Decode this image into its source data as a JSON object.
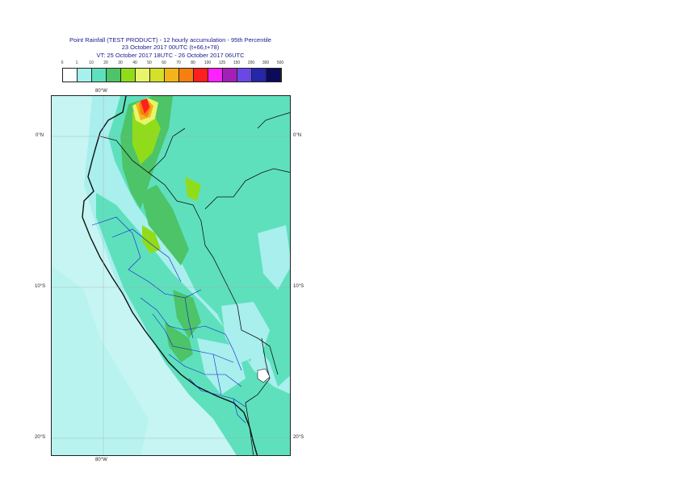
{
  "title": {
    "line1": "Point Rainfall (TEST PRODUCT) - 12 hourly accumulation - 95th Percentile",
    "line2": "23 October 2017 00UTC (t+66,t+78)",
    "line3": "VT: 25 October 2017 18UTC - 26 October 2017 06UTC"
  },
  "legend": {
    "ticks": [
      "0",
      "1",
      "10",
      "20",
      "30",
      "40",
      "50",
      "60",
      "70",
      "80",
      "100",
      "125",
      "150",
      "200",
      "300",
      "500"
    ],
    "colors": [
      "#ffffff",
      "#a6f0ee",
      "#5ee0bd",
      "#4cc467",
      "#91dc1a",
      "#e8f56a",
      "#d4e02a",
      "#f2b31b",
      "#f77f0f",
      "#ff1f1f",
      "#ff22ff",
      "#a41fb8",
      "#6a48e8",
      "#2526a8",
      "#0b0b5a"
    ]
  },
  "axes": {
    "top_lon": "80°W",
    "bottom_lon": "80°W",
    "lat_left": [
      "0°N",
      "10°S",
      "20°S"
    ],
    "lat_right": [
      "0°N",
      "10°S",
      "20°S"
    ]
  }
}
